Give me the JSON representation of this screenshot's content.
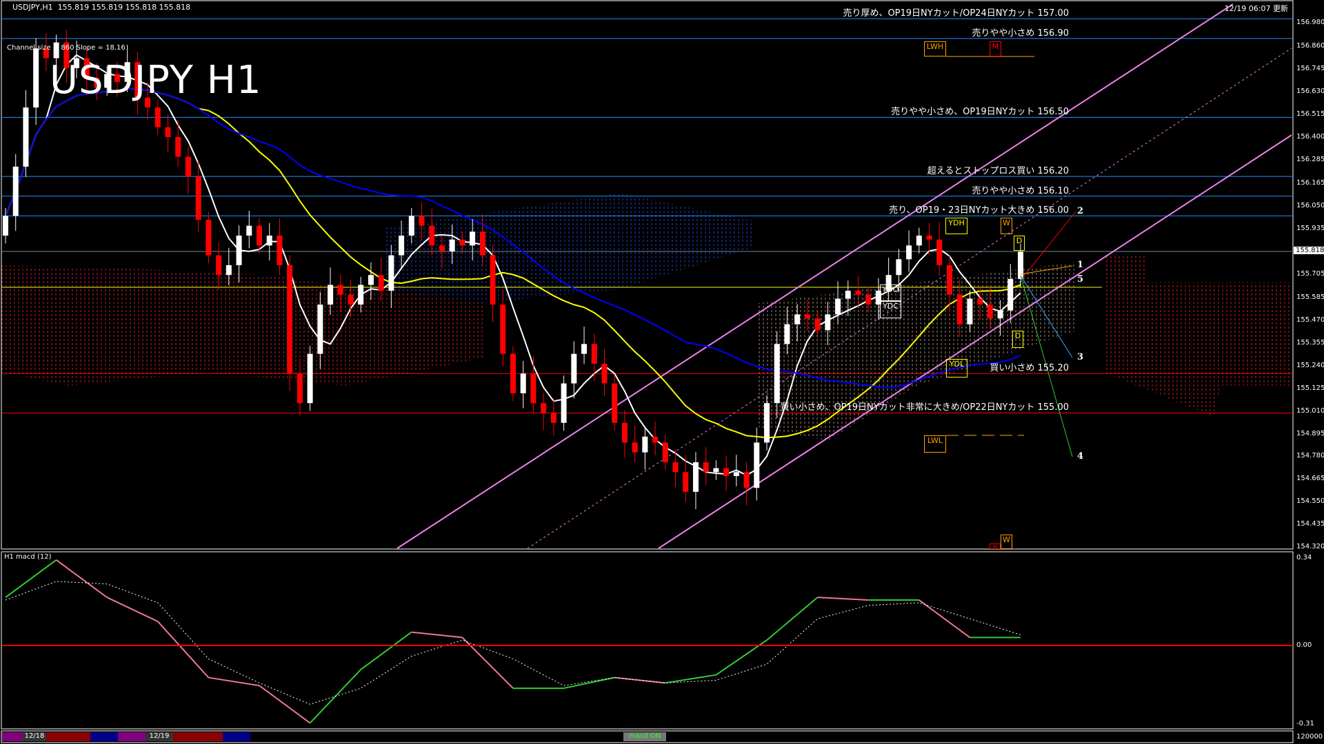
{
  "header": {
    "symbol": "USDJPY,H1",
    "ohlc": "155.819 155.819 155.818 155.818"
  },
  "channel_info": "Channel size = 860 Slope = 18.16",
  "chart_title": "USDJPY H1",
  "timestamp": "12/19 06:07 更新",
  "levels": [
    {
      "text": "売り厚め、OP19日NYカット/OP24日NYカット 157.00",
      "price": 157.0,
      "color": "#1e90ff"
    },
    {
      "text": "売りやや小さめ 156.90",
      "price": 156.9,
      "color": "#1e90ff"
    },
    {
      "text": "売りやや小さめ、OP19日NYカット 156.50",
      "price": 156.5,
      "color": "#1e90ff"
    },
    {
      "text": "超えるとストップロス買い 156.20",
      "price": 156.2,
      "color": "#1e90ff"
    },
    {
      "text": "売りやや小さめ 156.10",
      "price": 156.1,
      "color": "#1e90ff"
    },
    {
      "text": "売り、OP19・23日NYカット大きめ 156.00",
      "price": 156.0,
      "color": "#1e90ff"
    },
    {
      "text": "買い小さめ 155.20",
      "price": 155.2,
      "color": "#ff0000"
    },
    {
      "text": "買い小さめ、OP19日NYカット非常に大きめ/OP22日NYカット 155.00",
      "price": 155.0,
      "color": "#ff0000"
    }
  ],
  "markers": {
    "lwh": "LWH",
    "m_top": "M",
    "ydh": "YDH",
    "w_top": "W",
    "d_top": "D",
    "ydo": "YDO",
    "ydc": "YDC",
    "d_low": "D",
    "ydl": "YDL",
    "lwl": "LWL",
    "w_bottom": "W",
    "m_bottom": "M",
    "wave_labels": [
      "2",
      "1",
      "5",
      "3",
      "4"
    ]
  },
  "price_axis": {
    "ticks": [
      "156.980",
      "156.860",
      "156.745",
      "156.630",
      "156.515",
      "156.400",
      "156.285",
      "156.165",
      "156.050",
      "155.935",
      "155.705",
      "155.585",
      "155.470",
      "155.355",
      "155.240",
      "155.125",
      "155.010",
      "154.895",
      "154.780",
      "154.665",
      "154.550",
      "154.435",
      "154.320"
    ],
    "current_price": "155.818"
  },
  "macd_panel": {
    "label": "H1 macd (12)",
    "axis": {
      "top": "0.34",
      "zero": "0.00",
      "bottom": "-0.31"
    }
  },
  "bottom_bar": {
    "date1": "12/18",
    "date2": "12/19",
    "volume_scale": "120000",
    "macd_toggle": "macd ON"
  },
  "colors": {
    "bull": "#ffffff",
    "bear": "#ff0000",
    "macd_up": "#33cc33",
    "macd_down": "#ee7799",
    "channel": "#ee82ee",
    "ma_fast": "#ffffff",
    "ma_mid": "#ffff00",
    "ma_slow": "#0000ff"
  },
  "chart_data": [
    {
      "type": "candlestick",
      "title": "USDJPY H1",
      "ylim": [
        154.32,
        156.98
      ],
      "closes": [
        156.0,
        156.25,
        156.55,
        156.85,
        156.8,
        156.88,
        156.75,
        156.8,
        156.7,
        156.65,
        156.72,
        156.68,
        156.78,
        156.6,
        156.55,
        156.45,
        156.4,
        156.3,
        156.2,
        155.98,
        155.8,
        155.7,
        155.75,
        155.9,
        155.95,
        155.85,
        155.9,
        155.75,
        155.2,
        155.05,
        155.3,
        155.55,
        155.65,
        155.6,
        155.55,
        155.65,
        155.7,
        155.62,
        155.8,
        155.9,
        156.0,
        155.95,
        155.85,
        155.82,
        155.88,
        155.85,
        155.92,
        155.8,
        155.55,
        155.3,
        155.1,
        155.2,
        155.05,
        155.0,
        154.95,
        155.15,
        155.3,
        155.35,
        155.25,
        155.15,
        154.95,
        154.85,
        154.8,
        154.88,
        154.85,
        154.75,
        154.7,
        154.6,
        154.75,
        154.7,
        154.72,
        154.68,
        154.7,
        154.62,
        154.85,
        155.05,
        155.35,
        155.45,
        155.5,
        155.48,
        155.42,
        155.5,
        155.58,
        155.62,
        155.6,
        155.55,
        155.62,
        155.7,
        155.78,
        155.85,
        155.9,
        155.88,
        155.75,
        155.6,
        155.45,
        155.58,
        155.55,
        155.48,
        155.52,
        155.68,
        155.818
      ],
      "x_labels": [
        "12/18",
        "12/19"
      ]
    },
    {
      "type": "line",
      "title": "H1 macd (12)",
      "ylim": [
        -0.31,
        0.34
      ],
      "sample_every_n_candles": 5,
      "series": [
        {
          "values": [
            0.18,
            0.32,
            0.18,
            0.09,
            -0.12,
            -0.15,
            -0.29,
            -0.09,
            0.05,
            0.03,
            -0.16,
            -0.16,
            -0.12,
            -0.14,
            -0.11,
            0.02,
            0.18,
            0.17,
            0.17,
            0.03,
            0.03
          ]
        },
        {
          "values": [
            0.17,
            0.24,
            0.23,
            0.16,
            -0.05,
            -0.14,
            -0.22,
            -0.16,
            -0.04,
            0.02,
            -0.05,
            -0.15,
            -0.12,
            -0.14,
            -0.13,
            -0.07,
            0.1,
            0.15,
            0.16,
            0.1,
            0.04
          ]
        }
      ]
    }
  ]
}
